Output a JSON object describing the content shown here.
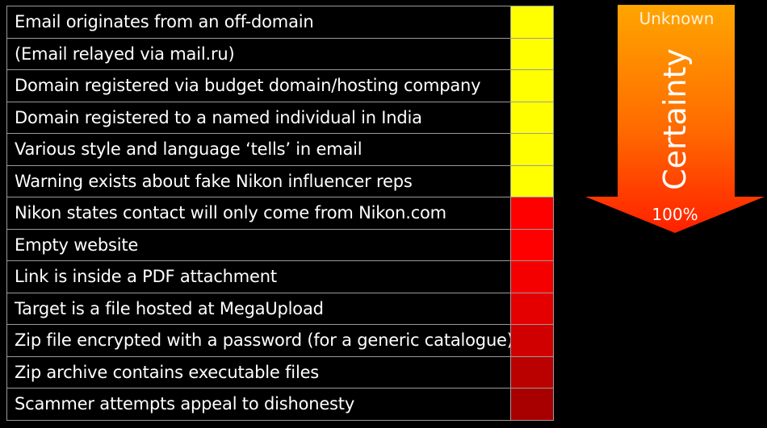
{
  "rows": [
    {
      "label": "Email originates from an off-domain",
      "color": "#ffff00"
    },
    {
      "label": "(Email relayed via mail.ru)",
      "color": "#ffff00"
    },
    {
      "label": "Domain registered via budget domain/hosting company",
      "color": "#ffff00"
    },
    {
      "label": "Domain registered to a named individual in India",
      "color": "#ffff00"
    },
    {
      "label": "Various style and language ‘tells’ in email",
      "color": "#ffff00"
    },
    {
      "label": "Warning exists about fake Nikon influencer reps",
      "color": "#ffff00"
    },
    {
      "label": "Nikon states contact will only come from Nikon.com",
      "color": "#ff0000"
    },
    {
      "label": "Empty website",
      "color": "#ff0000"
    },
    {
      "label": "Link is inside a PDF attachment",
      "color": "#f40000"
    },
    {
      "label": "Target is a file hosted at MegaUpload",
      "color": "#e40000"
    },
    {
      "label": "Zip file encrypted with a password (for a generic catalogue)",
      "color": "#d00000"
    },
    {
      "label": "Zip archive contains executable files",
      "color": "#bb0000"
    },
    {
      "label": "Scammer attempts appeal to dishonesty",
      "color": "#a80000"
    }
  ],
  "certainty_scale": {
    "top_label": "Unknown",
    "title": "Certainty",
    "bottom_label": "100%",
    "top_color": "#ffa500",
    "bottom_color": "#ff2000"
  }
}
